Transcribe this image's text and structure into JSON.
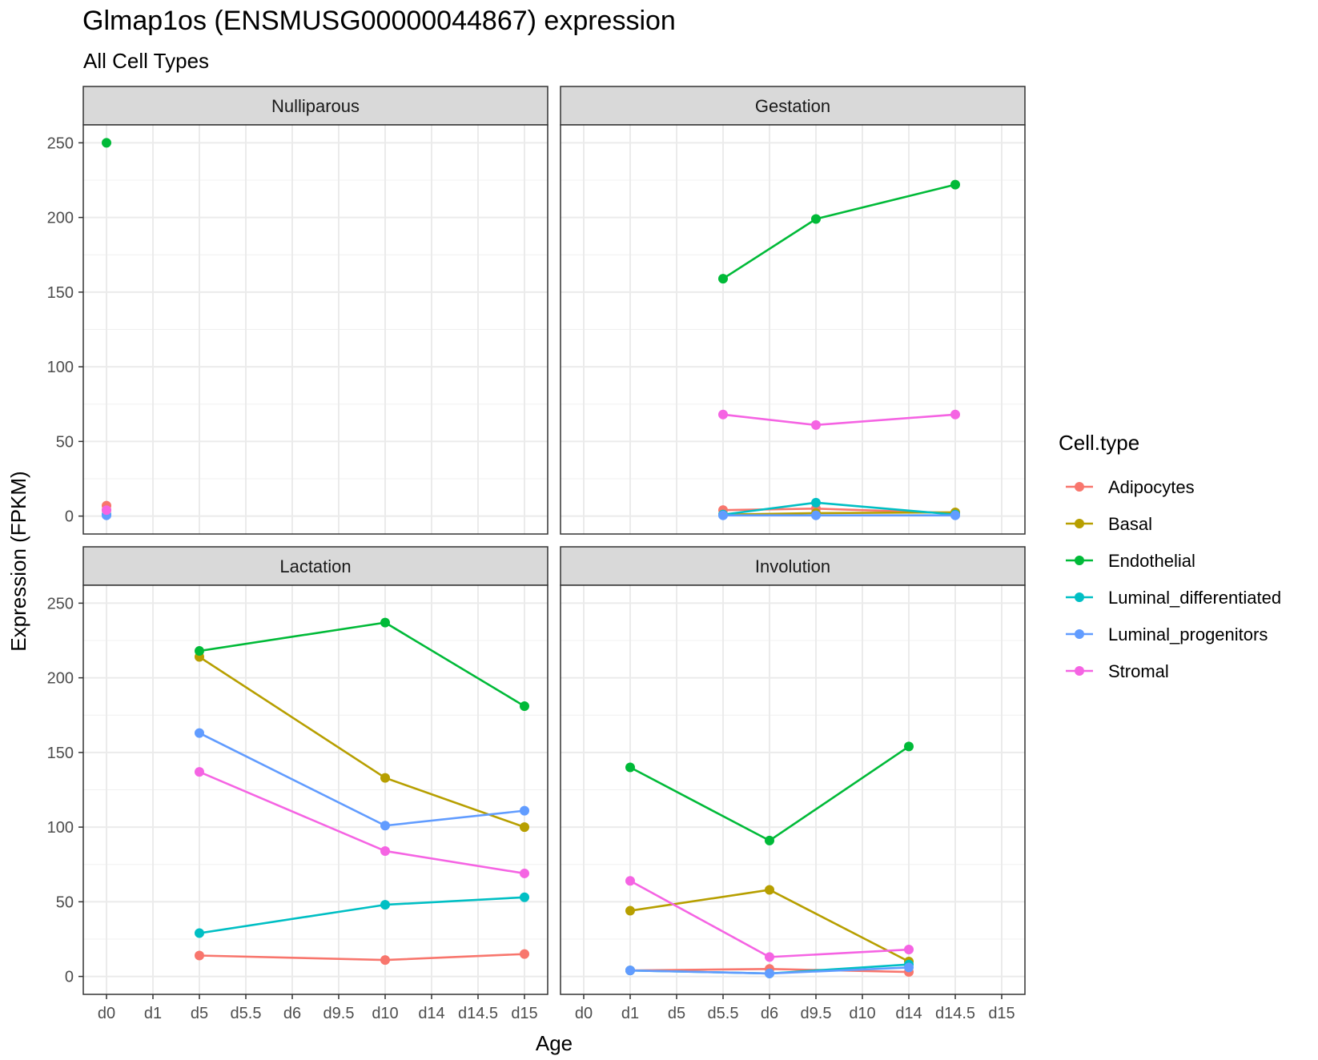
{
  "chart_data": {
    "type": "line",
    "title": "Glmap1os (ENSMUSG00000044867) expression",
    "subtitle": "All Cell Types",
    "xlabel": "Age",
    "ylabel": "Expression (FPKM)",
    "x_categories": [
      "d0",
      "d1",
      "d5",
      "d5.5",
      "d6",
      "d9.5",
      "d10",
      "d14",
      "d14.5",
      "d15"
    ],
    "y_ticks": [
      0,
      50,
      100,
      150,
      200,
      250
    ],
    "ylim": [
      -12,
      262
    ],
    "grid": true,
    "legend": {
      "title": "Cell.type",
      "placement": "right",
      "entries": [
        "Adipocytes",
        "Basal",
        "Endothelial",
        "Luminal_differentiated",
        "Luminal_progenitors",
        "Stromal"
      ]
    },
    "colors": {
      "Adipocytes": "#F8766D",
      "Basal": "#B79F00",
      "Endothelial": "#00BA38",
      "Luminal_differentiated": "#00BFC4",
      "Luminal_progenitors": "#619CFF",
      "Stromal": "#F564E3"
    },
    "panels": [
      {
        "name": "Nulliparous",
        "series": [
          {
            "name": "Adipocytes",
            "x": [
              "d0"
            ],
            "values": [
              7
            ]
          },
          {
            "name": "Basal",
            "x": [
              "d0"
            ],
            "values": [
              4
            ]
          },
          {
            "name": "Endothelial",
            "x": [
              "d0"
            ],
            "values": [
              250
            ]
          },
          {
            "name": "Luminal_differentiated",
            "x": [
              "d0"
            ],
            "values": [
              1
            ]
          },
          {
            "name": "Luminal_progenitors",
            "x": [
              "d0"
            ],
            "values": [
              0.5
            ]
          },
          {
            "name": "Stromal",
            "x": [
              "d0"
            ],
            "values": [
              4
            ]
          }
        ]
      },
      {
        "name": "Gestation",
        "series": [
          {
            "name": "Adipocytes",
            "x": [
              "d5.5",
              "d9.5",
              "d14.5"
            ],
            "values": [
              4,
              5,
              2
            ]
          },
          {
            "name": "Basal",
            "x": [
              "d5.5",
              "d9.5",
              "d14.5"
            ],
            "values": [
              1,
              2,
              2.5
            ]
          },
          {
            "name": "Endothelial",
            "x": [
              "d5.5",
              "d9.5",
              "d14.5"
            ],
            "values": [
              159,
              199,
              222
            ]
          },
          {
            "name": "Luminal_differentiated",
            "x": [
              "d5.5",
              "d9.5",
              "d14.5"
            ],
            "values": [
              1,
              9,
              1
            ]
          },
          {
            "name": "Luminal_progenitors",
            "x": [
              "d5.5",
              "d9.5",
              "d14.5"
            ],
            "values": [
              0.5,
              0.5,
              0.5
            ]
          },
          {
            "name": "Stromal",
            "x": [
              "d5.5",
              "d9.5",
              "d14.5"
            ],
            "values": [
              68,
              61,
              68
            ]
          }
        ]
      },
      {
        "name": "Lactation",
        "series": [
          {
            "name": "Adipocytes",
            "x": [
              "d5",
              "d10",
              "d15"
            ],
            "values": [
              14,
              11,
              15
            ]
          },
          {
            "name": "Basal",
            "x": [
              "d5",
              "d10",
              "d15"
            ],
            "values": [
              214,
              133,
              100
            ]
          },
          {
            "name": "Endothelial",
            "x": [
              "d5",
              "d10",
              "d15"
            ],
            "values": [
              218,
              237,
              181
            ]
          },
          {
            "name": "Luminal_differentiated",
            "x": [
              "d5",
              "d10",
              "d15"
            ],
            "values": [
              29,
              48,
              53
            ]
          },
          {
            "name": "Luminal_progenitors",
            "x": [
              "d5",
              "d10",
              "d15"
            ],
            "values": [
              163,
              101,
              111
            ]
          },
          {
            "name": "Stromal",
            "x": [
              "d5",
              "d10",
              "d15"
            ],
            "values": [
              137,
              84,
              69
            ]
          }
        ]
      },
      {
        "name": "Involution",
        "series": [
          {
            "name": "Adipocytes",
            "x": [
              "d1",
              "d6",
              "d14"
            ],
            "values": [
              4,
              5,
              3
            ]
          },
          {
            "name": "Basal",
            "x": [
              "d1",
              "d6",
              "d14"
            ],
            "values": [
              44,
              58,
              10
            ]
          },
          {
            "name": "Endothelial",
            "x": [
              "d1",
              "d6",
              "d14"
            ],
            "values": [
              140,
              91,
              154
            ]
          },
          {
            "name": "Luminal_differentiated",
            "x": [
              "d1",
              "d6",
              "d14"
            ],
            "values": [
              4,
              2,
              8
            ]
          },
          {
            "name": "Luminal_progenitors",
            "x": [
              "d1",
              "d6",
              "d14"
            ],
            "values": [
              4,
              2,
              6
            ]
          },
          {
            "name": "Stromal",
            "x": [
              "d1",
              "d6",
              "d14"
            ],
            "values": [
              64,
              13,
              18
            ]
          }
        ]
      }
    ]
  }
}
